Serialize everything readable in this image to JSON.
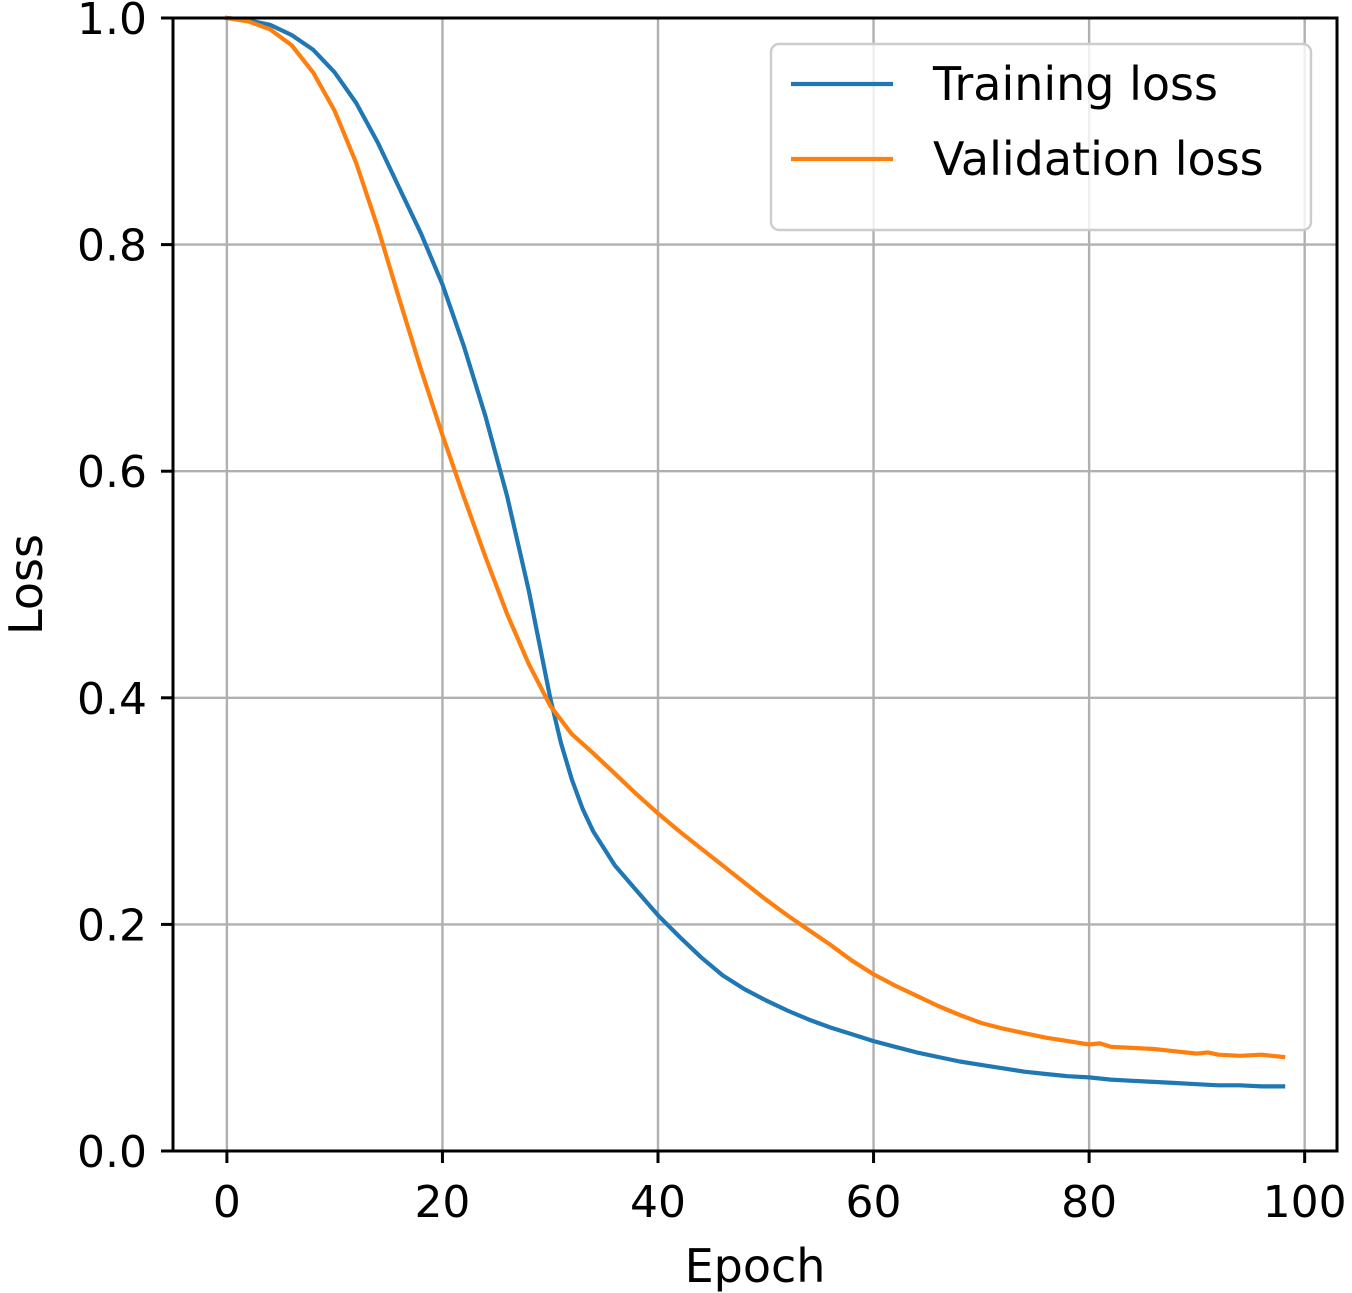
{
  "chart_data": {
    "type": "line",
    "title": "",
    "xlabel": "Epoch",
    "ylabel": "Loss",
    "xlim": [
      -5,
      103
    ],
    "ylim": [
      0.0,
      1.0
    ],
    "x_ticks": [
      0,
      20,
      40,
      60,
      80,
      100
    ],
    "x_tick_labels": [
      "0",
      "20",
      "40",
      "60",
      "80",
      "100"
    ],
    "y_ticks": [
      0.0,
      0.2,
      0.4,
      0.6,
      0.8,
      1.0
    ],
    "y_tick_labels": [
      "0.0",
      "0.2",
      "0.4",
      "0.6",
      "0.8",
      "1.0"
    ],
    "grid": true,
    "legend_position": "top-right",
    "series": [
      {
        "name": "Training loss",
        "color": "#1f77b4",
        "x": [
          0,
          2,
          4,
          6,
          8,
          10,
          12,
          14,
          16,
          18,
          20,
          22,
          24,
          26,
          28,
          30,
          31,
          32,
          33,
          34,
          36,
          38,
          40,
          42,
          44,
          46,
          48,
          50,
          52,
          54,
          56,
          58,
          60,
          62,
          64,
          66,
          68,
          70,
          72,
          74,
          76,
          78,
          80,
          82,
          84,
          86,
          88,
          90,
          92,
          94,
          96,
          98
        ],
        "y": [
          1.0,
          0.998,
          0.994,
          0.985,
          0.972,
          0.952,
          0.925,
          0.89,
          0.85,
          0.81,
          0.765,
          0.71,
          0.648,
          0.578,
          0.495,
          0.4,
          0.36,
          0.328,
          0.302,
          0.282,
          0.252,
          0.23,
          0.208,
          0.189,
          0.171,
          0.155,
          0.143,
          0.133,
          0.124,
          0.116,
          0.109,
          0.103,
          0.097,
          0.092,
          0.087,
          0.083,
          0.079,
          0.076,
          0.073,
          0.07,
          0.068,
          0.066,
          0.065,
          0.063,
          0.062,
          0.061,
          0.06,
          0.059,
          0.058,
          0.058,
          0.057,
          0.057
        ]
      },
      {
        "name": "Validation loss",
        "color": "#ff7f0e",
        "x": [
          0,
          2,
          4,
          6,
          8,
          10,
          12,
          14,
          16,
          18,
          20,
          22,
          24,
          26,
          28,
          30,
          32,
          34,
          36,
          38,
          40,
          42,
          44,
          46,
          48,
          50,
          52,
          54,
          56,
          58,
          60,
          62,
          64,
          66,
          68,
          70,
          72,
          74,
          76,
          78,
          80,
          81,
          82,
          84,
          86,
          88,
          90,
          91,
          92,
          94,
          96,
          98
        ],
        "y": [
          1.0,
          0.997,
          0.99,
          0.976,
          0.952,
          0.918,
          0.872,
          0.815,
          0.752,
          0.69,
          0.632,
          0.577,
          0.524,
          0.474,
          0.43,
          0.393,
          0.368,
          0.351,
          0.333,
          0.315,
          0.298,
          0.282,
          0.267,
          0.252,
          0.237,
          0.222,
          0.208,
          0.195,
          0.182,
          0.168,
          0.156,
          0.146,
          0.137,
          0.128,
          0.12,
          0.113,
          0.108,
          0.104,
          0.1,
          0.097,
          0.094,
          0.095,
          0.092,
          0.091,
          0.09,
          0.088,
          0.086,
          0.087,
          0.085,
          0.084,
          0.085,
          0.083
        ]
      }
    ]
  }
}
